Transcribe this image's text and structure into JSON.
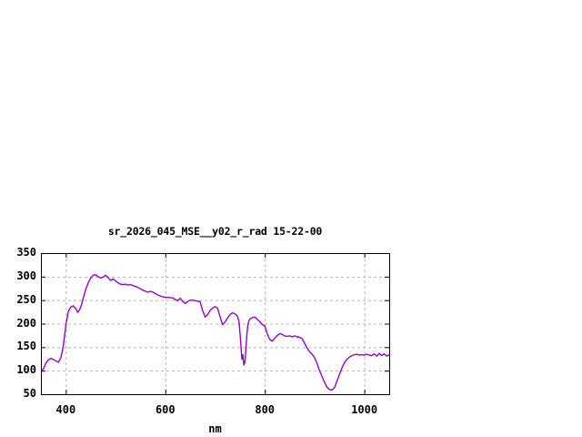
{
  "window": {
    "background_color": "#ffffff"
  },
  "chart_data": {
    "type": "line",
    "title": "sr_2026_045_MSE__y02_r_rad 15-22-00",
    "xlabel": "nm",
    "ylabel": "",
    "xlim": [
      350,
      1050
    ],
    "ylim": [
      50,
      350
    ],
    "xticks": [
      400,
      600,
      800,
      1000
    ],
    "yticks": [
      50,
      100,
      150,
      200,
      250,
      300,
      350
    ],
    "grid": true,
    "grid_style": "dashed",
    "legend_position": "none",
    "colors": {
      "line": "#9400d3",
      "grid": "#b4b4b4",
      "border": "#000000",
      "text": "#000000",
      "background": "#ffffff"
    },
    "series": [
      {
        "name": "sr_2026_045_MSE__y02_r_rad 15-22-00",
        "color": "#9400d3",
        "x": [
          350,
          355,
          360,
          365,
          370,
          375,
          380,
          385,
          390,
          395,
          400,
          405,
          410,
          415,
          420,
          424,
          428,
          432,
          436,
          440,
          445,
          450,
          455,
          460,
          465,
          470,
          475,
          480,
          485,
          490,
          495,
          500,
          505,
          510,
          515,
          520,
          525,
          530,
          535,
          540,
          545,
          550,
          555,
          560,
          565,
          570,
          575,
          580,
          585,
          590,
          595,
          600,
          605,
          610,
          615,
          620,
          625,
          630,
          635,
          640,
          645,
          650,
          655,
          660,
          665,
          670,
          675,
          680,
          685,
          690,
          695,
          700,
          705,
          710,
          715,
          720,
          725,
          730,
          735,
          740,
          745,
          748,
          751,
          754,
          756,
          758,
          760,
          762,
          764,
          766,
          768,
          770,
          775,
          780,
          785,
          790,
          795,
          800,
          805,
          810,
          815,
          820,
          825,
          830,
          835,
          840,
          845,
          850,
          855,
          860,
          865,
          870,
          875,
          880,
          885,
          890,
          895,
          900,
          905,
          910,
          915,
          920,
          925,
          930,
          935,
          940,
          945,
          950,
          955,
          960,
          965,
          970,
          975,
          980,
          985,
          990,
          995,
          1000,
          1005,
          1010,
          1015,
          1020,
          1025,
          1030,
          1035,
          1040,
          1045,
          1050
        ],
        "y": [
          100,
          103,
          116,
          123,
          126,
          124,
          121,
          118,
          127,
          152,
          196,
          226,
          235,
          238,
          232,
          224,
          230,
          242,
          258,
          272,
          287,
          297,
          303,
          304,
          300,
          297,
          299,
          303,
          298,
          292,
          295,
          291,
          287,
          284,
          283,
          284,
          282,
          283,
          281,
          279,
          277,
          274,
          271,
          269,
          267,
          269,
          267,
          264,
          261,
          259,
          257,
          256,
          256,
          255,
          255,
          251,
          249,
          254,
          247,
          243,
          247,
          250,
          250,
          249,
          248,
          246,
          228,
          214,
          219,
          228,
          233,
          236,
          233,
          215,
          198,
          203,
          212,
          219,
          223,
          221,
          216,
          205,
          168,
          124,
          134,
          112,
          117,
          146,
          178,
          198,
          206,
          210,
          213,
          214,
          209,
          204,
          198,
          195,
          179,
          166,
          163,
          169,
          175,
          179,
          177,
          174,
          173,
          174,
          172,
          174,
          172,
          171,
          168,
          158,
          148,
          140,
          135,
          128,
          115,
          100,
          88,
          75,
          65,
          60,
          59,
          64,
          78,
          92,
          106,
          117,
          124,
          129,
          132,
          134,
          135,
          133,
          134,
          133,
          135,
          133,
          132,
          136,
          131,
          137,
          132,
          136,
          131,
          134
        ]
      }
    ]
  }
}
